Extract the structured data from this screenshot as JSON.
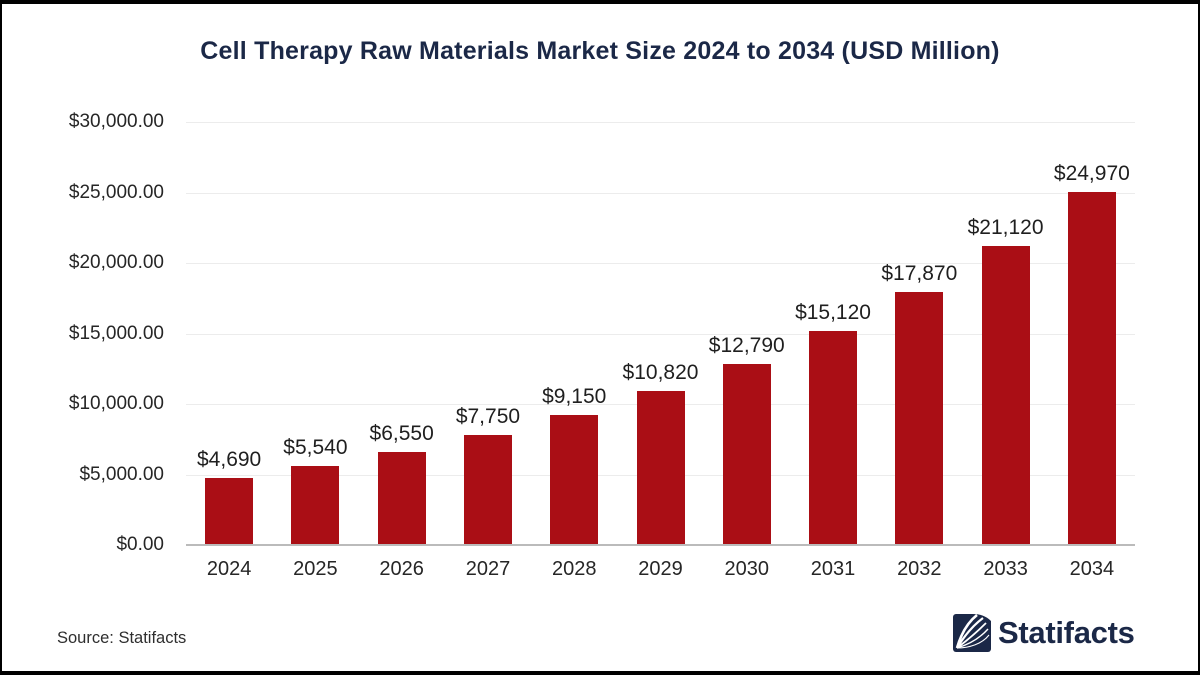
{
  "page": {
    "title": "Cell Therapy Raw Materials Market Size 2024 to 2034 (USD Million)",
    "source_note": "Source: Statifacts",
    "brand": {
      "name": "Statifacts"
    }
  },
  "colors": {
    "bar": "#AA0E15",
    "title_navy": "#1B2847",
    "label_text": "#1F1F1F",
    "axis_text": "#262626",
    "gridline": "#ECECEC",
    "axis_line": "#BBBBBB",
    "frame_border": "#000000",
    "brand_navy": "#1B2847"
  },
  "chart_data": {
    "type": "bar",
    "title": "Cell Therapy Raw Materials Market Size 2024 to 2034 (USD Million)",
    "categories": [
      "2024",
      "2025",
      "2026",
      "2027",
      "2028",
      "2029",
      "2030",
      "2031",
      "2032",
      "2033",
      "2034"
    ],
    "values": [
      4690,
      5540,
      6550,
      7750,
      9150,
      10820,
      12790,
      15120,
      17870,
      21120,
      24970
    ],
    "value_labels": [
      "$4,690",
      "$5,540",
      "$6,550",
      "$7,750",
      "$9,150",
      "$10,820",
      "$12,790",
      "$15,120",
      "$17,870",
      "$21,120",
      "$24,970"
    ],
    "xlabel": "",
    "ylabel": "",
    "ylim": [
      0,
      30000
    ],
    "ytick_step": 5000,
    "ytick_labels": [
      "$0.00",
      "$5,000.00",
      "$10,000.00",
      "$15,000.00",
      "$20,000.00",
      "$25,000.00",
      "$30,000.00"
    ],
    "grid": true,
    "legend": false,
    "bar_color": "#AA0E15"
  }
}
